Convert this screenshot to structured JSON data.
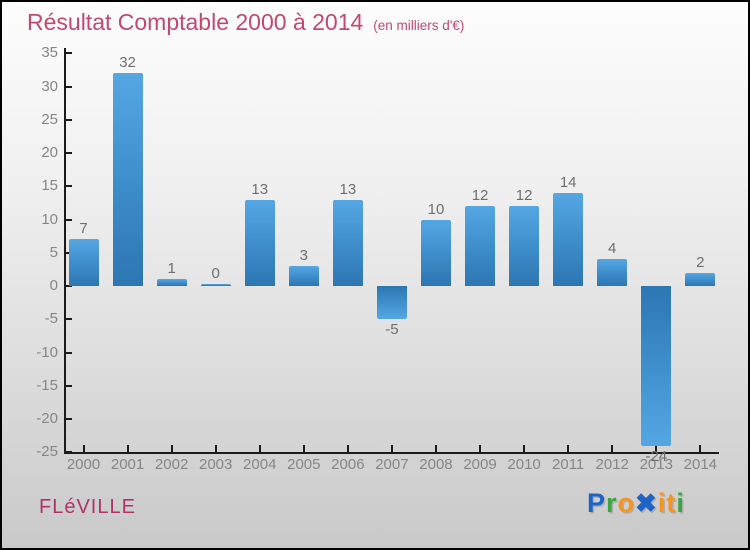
{
  "page": {
    "title": "Résultat Comptable 2000 à 2014",
    "subtitle": "(en milliers d'€)",
    "footer_left": "FLéVILLE",
    "logo": {
      "name": "Proxiti",
      "letters": [
        {
          "char": "P",
          "color": "#1e63c8"
        },
        {
          "char": "r",
          "color": "#3aa63f"
        },
        {
          "char": "o",
          "color": "#f7941d"
        },
        {
          "char": "✖",
          "color": "#1e63c8"
        },
        {
          "char": "i",
          "color": "#f7941d"
        },
        {
          "char": "t",
          "color": "#f7941d"
        },
        {
          "char": "i",
          "color": "#3aa63f"
        }
      ]
    }
  },
  "colors": {
    "title": "#c3486e",
    "footer_left": "#b13469",
    "bar_gradient_top": "#55a7e3",
    "bar_gradient_bottom": "#2d76b2",
    "axis": "#1b1b1b",
    "tick_labels": "#868686",
    "value_labels": "#6e6f71",
    "background_top": "#fdfdfd",
    "background_bottom": "#c9c9c9"
  },
  "chart_data": {
    "type": "bar",
    "title": "Résultat Comptable 2000 à 2014",
    "subtitle": "(en milliers d'€)",
    "categories": [
      "2000",
      "2001",
      "2002",
      "2003",
      "2004",
      "2005",
      "2006",
      "2007",
      "2008",
      "2009",
      "2010",
      "2011",
      "2012",
      "2013",
      "2014"
    ],
    "values": [
      7,
      32,
      1,
      0,
      13,
      3,
      13,
      -5,
      10,
      12,
      12,
      14,
      4,
      -24,
      2
    ],
    "xlabel": "",
    "ylabel": "",
    "ylim": [
      -25,
      35
    ],
    "ytick_step": 5,
    "yticks": [
      35,
      30,
      25,
      20,
      15,
      10,
      5,
      0,
      -5,
      -10,
      -15,
      -20,
      -25
    ],
    "grid": false,
    "legend": "none",
    "bar_value_labels_shown": true
  }
}
